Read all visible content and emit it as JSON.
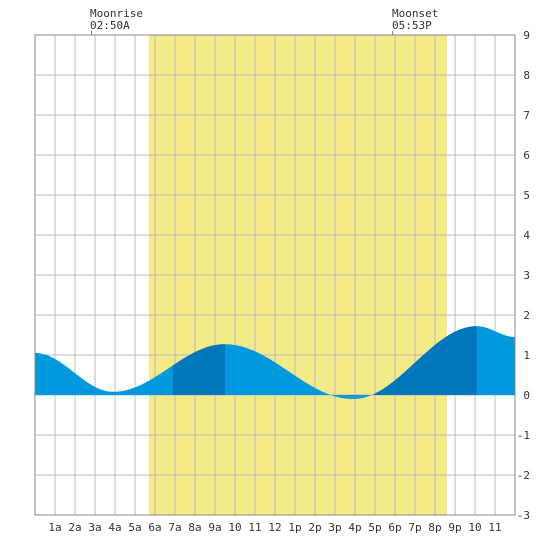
{
  "chart_data": {
    "type": "area",
    "title": "",
    "xlabel": "",
    "ylabel": "",
    "x_tick_labels": [
      "1a",
      "2a",
      "3a",
      "4a",
      "5a",
      "6a",
      "7a",
      "8a",
      "9a",
      "10",
      "11",
      "12",
      "1p",
      "2p",
      "3p",
      "4p",
      "5p",
      "6p",
      "7p",
      "8p",
      "9p",
      "10",
      "11"
    ],
    "x_range_hours": [
      0,
      24
    ],
    "ylim": [
      -3,
      9
    ],
    "y_ticks": [
      "-3",
      "-2",
      "-1",
      "0",
      "1",
      "2",
      "3",
      "4",
      "5",
      "6",
      "7",
      "8",
      "9"
    ],
    "grid": true,
    "daylight_hours": [
      5.7,
      20.6
    ],
    "tide_extrema": [
      {
        "hour": 0.0,
        "height": 1.05
      },
      {
        "hour": 3.9,
        "height": 0.08
      },
      {
        "hour": 9.5,
        "height": 1.27
      },
      {
        "hour": 15.9,
        "height": -0.1
      },
      {
        "hour": 22.1,
        "height": 1.72
      },
      {
        "hour": 24.0,
        "height": 1.45
      }
    ],
    "shaded_intervals": [
      [
        6.9,
        9.5
      ],
      [
        17.0,
        22.1
      ]
    ],
    "annotations": {
      "moonrise": {
        "label": "Moonrise",
        "time": "02:50A",
        "hour": 2.83
      },
      "moonset": {
        "label": "Moonset",
        "time": "05:53P",
        "hour": 17.88
      }
    },
    "colors": {
      "water": "#0099dd",
      "water_dark": "#0077bb",
      "daylight": "#f4ea88",
      "grid": "#bbbbbb"
    }
  }
}
